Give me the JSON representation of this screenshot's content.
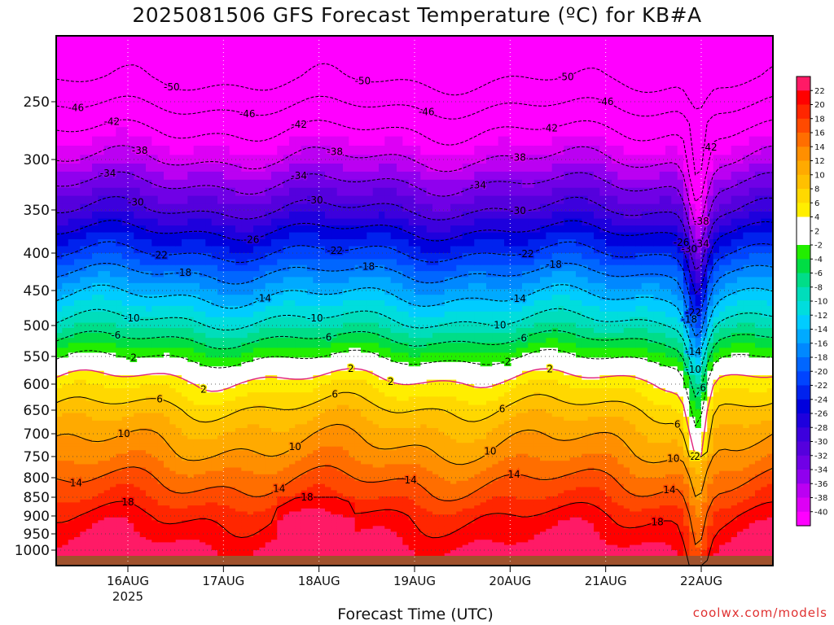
{
  "title": "2025081506 GFS Forecast Temperature (ºC) for KB#A",
  "footer": {
    "xlabel": "Forecast Time (UTC)",
    "credit": "coolwx.com/models"
  },
  "chart_data": {
    "type": "heatmap",
    "title": "2025081506 GFS Forecast Temperature (ºC) for KB#A",
    "xlabel": "Forecast Time (UTC)",
    "ylabel": "",
    "y_scale": "pressure (hPa, inverted, log-like)",
    "y_ticks": [
      250,
      300,
      350,
      400,
      450,
      500,
      550,
      600,
      650,
      700,
      750,
      800,
      850,
      900,
      950,
      1000
    ],
    "x_ticks": [
      {
        "label": "16AUG",
        "sub": "2025",
        "hour": 18
      },
      {
        "label": "17AUG",
        "sub": "",
        "hour": 42
      },
      {
        "label": "18AUG",
        "sub": "",
        "hour": 66
      },
      {
        "label": "19AUG",
        "sub": "",
        "hour": 90
      },
      {
        "label": "20AUG",
        "sub": "",
        "hour": 114
      },
      {
        "label": "21AUG",
        "sub": "",
        "hour": 138
      },
      {
        "label": "22AUG",
        "sub": "",
        "hour": 162
      }
    ],
    "xlim_hours": [
      0,
      180
    ],
    "colorbar": {
      "labels": [
        "22",
        "20",
        "18",
        "16",
        "14",
        "12",
        "10",
        "8",
        "6",
        "4",
        "2",
        "-2",
        "-4",
        "-6",
        "-8",
        "-10",
        "-12",
        "-14",
        "-16",
        "-18",
        "-20",
        "-22",
        "-24",
        "-26",
        "-28",
        "-30",
        "-32",
        "-34",
        "-36",
        "-38",
        "-40"
      ],
      "colors": [
        "#ff1a66",
        "#ff0000",
        "#ff2600",
        "#ff4a00",
        "#ff6e00",
        "#ff8f00",
        "#ffaa00",
        "#ffc000",
        "#ffd800",
        "#ffee00",
        "#ffffff",
        "#ffffff",
        "#22ee00",
        "#00dd44",
        "#00dd88",
        "#00ddbb",
        "#00dddd",
        "#00ccff",
        "#00aaff",
        "#0088ff",
        "#0066ff",
        "#0044ff",
        "#0022ee",
        "#0000dd",
        "#1e00dd",
        "#3c00dd",
        "#5500dd",
        "#7000e6",
        "#9000ee",
        "#bb00f2",
        "#dd00f5",
        "#ff00ff"
      ]
    },
    "contours": [
      {
        "value": -50,
        "labels": [
          {
            "hour": 29,
            "text": "-50"
          },
          {
            "hour": 77,
            "text": "-50"
          },
          {
            "hour": 128,
            "text": "-50"
          }
        ]
      },
      {
        "value": -46,
        "labels": [
          {
            "hour": 5,
            "text": "-46"
          },
          {
            "hour": 48,
            "text": "-46"
          },
          {
            "hour": 93,
            "text": "-46"
          },
          {
            "hour": 138,
            "text": "-46"
          }
        ]
      },
      {
        "value": -42,
        "labels": [
          {
            "hour": 14,
            "text": "-42"
          },
          {
            "hour": 61,
            "text": "-42"
          },
          {
            "hour": 124,
            "text": "-42"
          },
          {
            "hour": 164,
            "text": "-42"
          }
        ]
      },
      {
        "value": -38,
        "labels": [
          {
            "hour": 21,
            "text": "-38"
          },
          {
            "hour": 70,
            "text": "-38"
          },
          {
            "hour": 116,
            "text": "-38"
          },
          {
            "hour": 162,
            "text": "-38"
          }
        ]
      },
      {
        "value": -34,
        "labels": [
          {
            "hour": 13,
            "text": "-34"
          },
          {
            "hour": 61,
            "text": "-34"
          },
          {
            "hour": 106,
            "text": "-34"
          },
          {
            "hour": 162,
            "text": "-34"
          }
        ]
      },
      {
        "value": -30,
        "labels": [
          {
            "hour": 20,
            "text": "-30"
          },
          {
            "hour": 65,
            "text": "-30"
          },
          {
            "hour": 116,
            "text": "-30"
          },
          {
            "hour": 159,
            "text": "-30"
          }
        ]
      },
      {
        "value": -26,
        "labels": [
          {
            "hour": 49,
            "text": "-26"
          },
          {
            "hour": 157,
            "text": "-26"
          }
        ]
      },
      {
        "value": -22,
        "labels": [
          {
            "hour": 26,
            "text": "-22"
          },
          {
            "hour": 70,
            "text": "-22"
          },
          {
            "hour": 118,
            "text": "-22"
          },
          {
            "hour": 160,
            "text": "-22"
          }
        ]
      },
      {
        "value": -18,
        "labels": [
          {
            "hour": 32,
            "text": "-18"
          },
          {
            "hour": 78,
            "text": "-18"
          },
          {
            "hour": 125,
            "text": "-18"
          },
          {
            "hour": 159,
            "text": "-18"
          }
        ]
      },
      {
        "value": -14,
        "labels": [
          {
            "hour": 52,
            "text": "-14"
          },
          {
            "hour": 116,
            "text": "-14"
          },
          {
            "hour": 160,
            "text": "-14"
          }
        ]
      },
      {
        "value": -10,
        "labels": [
          {
            "hour": 19,
            "text": "-10"
          },
          {
            "hour": 65,
            "text": "-10"
          },
          {
            "hour": 111,
            "text": "-10"
          },
          {
            "hour": 160,
            "text": "-10"
          }
        ]
      },
      {
        "value": -6,
        "labels": [
          {
            "hour": 15,
            "text": "-6"
          },
          {
            "hour": 68,
            "text": "-6"
          },
          {
            "hour": 117,
            "text": "-6"
          },
          {
            "hour": 162,
            "text": "-6"
          }
        ]
      },
      {
        "value": -2,
        "labels": [
          {
            "hour": 19,
            "text": "-2"
          },
          {
            "hour": 113,
            "text": "-2"
          }
        ]
      },
      {
        "value": 2,
        "labels": [
          {
            "hour": 74,
            "text": "2"
          },
          {
            "hour": 37,
            "text": "2"
          },
          {
            "hour": 84,
            "text": "2"
          },
          {
            "hour": 124,
            "text": "2"
          },
          {
            "hour": 160,
            "text": "2"
          },
          {
            "hour": 161,
            "text": "2"
          }
        ]
      },
      {
        "value": 6,
        "labels": [
          {
            "hour": 26,
            "text": "6"
          },
          {
            "hour": 70,
            "text": "6"
          },
          {
            "hour": 112,
            "text": "6"
          },
          {
            "hour": 156,
            "text": "6"
          }
        ]
      },
      {
        "value": 10,
        "labels": [
          {
            "hour": 17,
            "text": "10"
          },
          {
            "hour": 60,
            "text": "10"
          },
          {
            "hour": 109,
            "text": "10"
          },
          {
            "hour": 155,
            "text": "10"
          }
        ]
      },
      {
        "value": 14,
        "labels": [
          {
            "hour": 5,
            "text": "14"
          },
          {
            "hour": 56,
            "text": "14"
          },
          {
            "hour": 89,
            "text": "14"
          },
          {
            "hour": 115,
            "text": "14"
          },
          {
            "hour": 154,
            "text": "14"
          }
        ]
      },
      {
        "value": 18,
        "labels": [
          {
            "hour": 18,
            "text": "18"
          },
          {
            "hour": 63,
            "text": "18"
          },
          {
            "hour": 151,
            "text": "18"
          }
        ]
      }
    ]
  }
}
